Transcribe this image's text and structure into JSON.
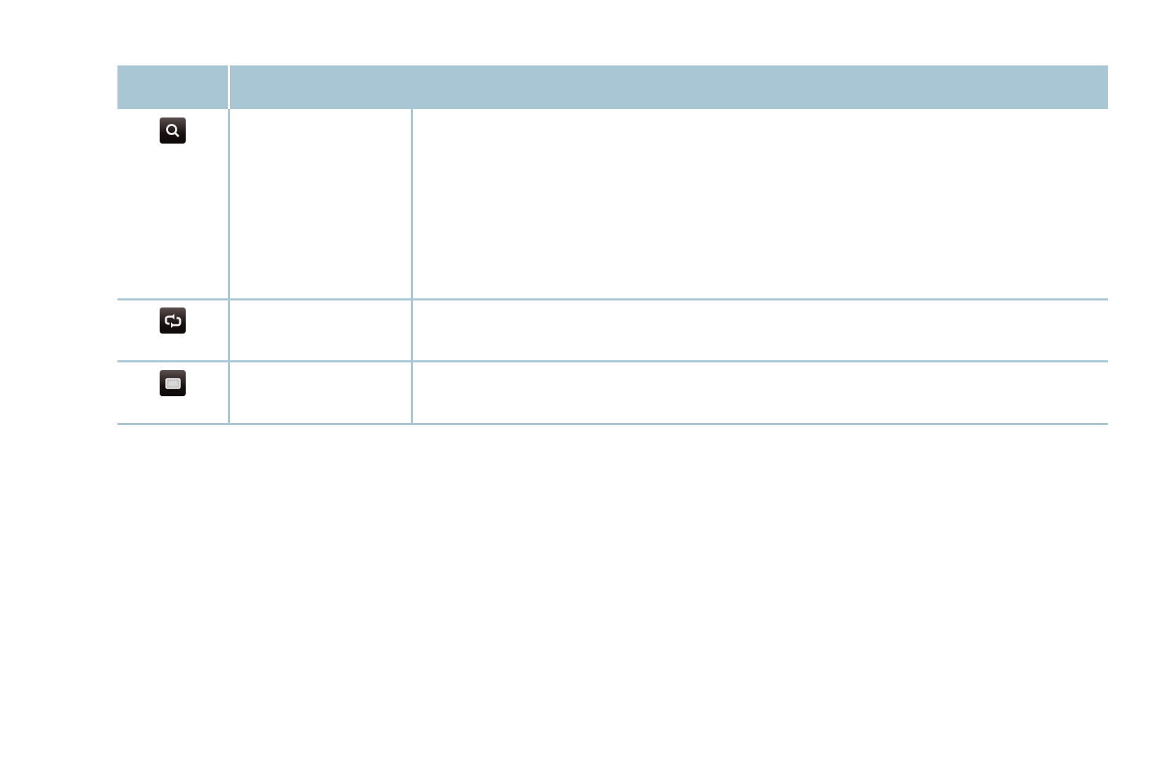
{
  "table": {
    "header": [
      "",
      ""
    ],
    "rows": [
      {
        "icon": "search-icon",
        "name": "",
        "description": ""
      },
      {
        "icon": "repeat-icon",
        "name": "",
        "description": ""
      },
      {
        "icon": "screen-mode-icon",
        "name": "",
        "description": ""
      }
    ]
  },
  "colors": {
    "header_bg": "#a9c6d4",
    "rule": "#a9c6d4",
    "icon_bg": "#1a1212"
  }
}
